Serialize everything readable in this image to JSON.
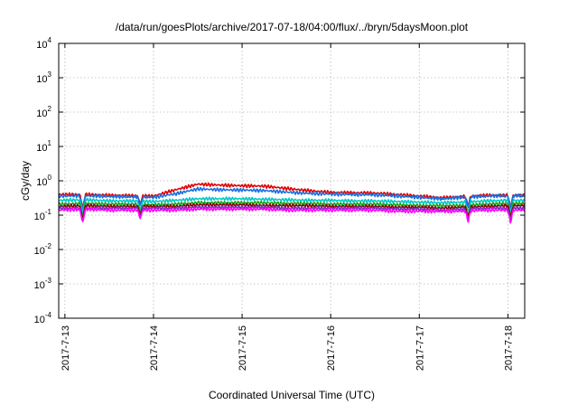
{
  "chart_data": {
    "type": "line",
    "title": "/data/run/goesPlots/archive/2017-07-18/04:00/flux/../bryn/5daysMoon.plot",
    "xlabel": "Coordinated Universal Time (UTC)",
    "ylabel": "cGy/day",
    "yscale": "log",
    "ylim": [
      0.0001,
      10000
    ],
    "xlim_days": [
      -0.07,
      5.19
    ],
    "x_tick_labels": [
      "2017-7-13",
      "2017-7-14",
      "2017-7-15",
      "2017-7-16",
      "2017-7-17",
      "2017-7-18"
    ],
    "y_ticks": [
      {
        "base": "10",
        "exp": "-4",
        "value": 0.0001
      },
      {
        "base": "10",
        "exp": "-3",
        "value": 0.001
      },
      {
        "base": "10",
        "exp": "-2",
        "value": 0.01
      },
      {
        "base": "10",
        "exp": "-1",
        "value": 0.1
      },
      {
        "base": "10",
        "exp": "0",
        "value": 1
      },
      {
        "base": "10",
        "exp": "1",
        "value": 10
      },
      {
        "base": "10",
        "exp": "2",
        "value": 100
      },
      {
        "base": "10",
        "exp": "3",
        "value": 1000
      },
      {
        "base": "10",
        "exp": "4",
        "value": 10000
      }
    ],
    "grid": true,
    "legend": "none",
    "x_days": [
      -0.07,
      0.25,
      0.5,
      0.75,
      1.0,
      1.25,
      1.5,
      1.75,
      2.0,
      2.25,
      2.5,
      2.75,
      3.0,
      3.25,
      3.5,
      3.75,
      4.0,
      4.25,
      4.5,
      4.75,
      5.0,
      5.19
    ],
    "series": [
      {
        "color": "#e00000",
        "values": [
          0.4,
          0.4,
          0.38,
          0.37,
          0.36,
          0.55,
          0.8,
          0.75,
          0.72,
          0.7,
          0.6,
          0.52,
          0.46,
          0.45,
          0.44,
          0.4,
          0.36,
          0.32,
          0.35,
          0.38,
          0.38,
          0.38
        ]
      },
      {
        "color": "#1a6fe0",
        "values": [
          0.36,
          0.37,
          0.35,
          0.34,
          0.33,
          0.42,
          0.58,
          0.55,
          0.54,
          0.52,
          0.47,
          0.43,
          0.41,
          0.4,
          0.39,
          0.36,
          0.33,
          0.3,
          0.33,
          0.36,
          0.37,
          0.37
        ]
      },
      {
        "color": "#00c8c8",
        "values": [
          0.27,
          0.28,
          0.26,
          0.26,
          0.25,
          0.27,
          0.3,
          0.3,
          0.3,
          0.29,
          0.28,
          0.27,
          0.27,
          0.26,
          0.26,
          0.25,
          0.24,
          0.23,
          0.24,
          0.26,
          0.27,
          0.27
        ]
      },
      {
        "color": "#19a819",
        "values": [
          0.21,
          0.22,
          0.21,
          0.21,
          0.2,
          0.21,
          0.23,
          0.23,
          0.23,
          0.23,
          0.22,
          0.22,
          0.21,
          0.21,
          0.21,
          0.2,
          0.19,
          0.19,
          0.19,
          0.21,
          0.22,
          0.22
        ]
      },
      {
        "color": "#8b0000",
        "values": [
          0.18,
          0.19,
          0.18,
          0.18,
          0.18,
          0.18,
          0.2,
          0.2,
          0.2,
          0.19,
          0.19,
          0.19,
          0.18,
          0.18,
          0.18,
          0.17,
          0.17,
          0.16,
          0.17,
          0.18,
          0.19,
          0.19
        ]
      },
      {
        "color": "#7a2cbf",
        "values": [
          0.16,
          0.16,
          0.16,
          0.16,
          0.16,
          0.16,
          0.17,
          0.17,
          0.17,
          0.17,
          0.16,
          0.16,
          0.16,
          0.16,
          0.16,
          0.15,
          0.15,
          0.14,
          0.15,
          0.16,
          0.16,
          0.16
        ]
      },
      {
        "color": "#ff00ff",
        "values": [
          0.14,
          0.15,
          0.14,
          0.14,
          0.14,
          0.14,
          0.15,
          0.15,
          0.15,
          0.15,
          0.14,
          0.14,
          0.14,
          0.14,
          0.14,
          0.13,
          0.13,
          0.13,
          0.13,
          0.14,
          0.14,
          0.14
        ]
      }
    ],
    "dips": [
      {
        "day": 0.2,
        "value": 0.055
      },
      {
        "day": 0.85,
        "value": 0.08
      },
      {
        "day": 4.55,
        "value": 0.07
      },
      {
        "day": 5.03,
        "value": 0.06
      }
    ]
  }
}
